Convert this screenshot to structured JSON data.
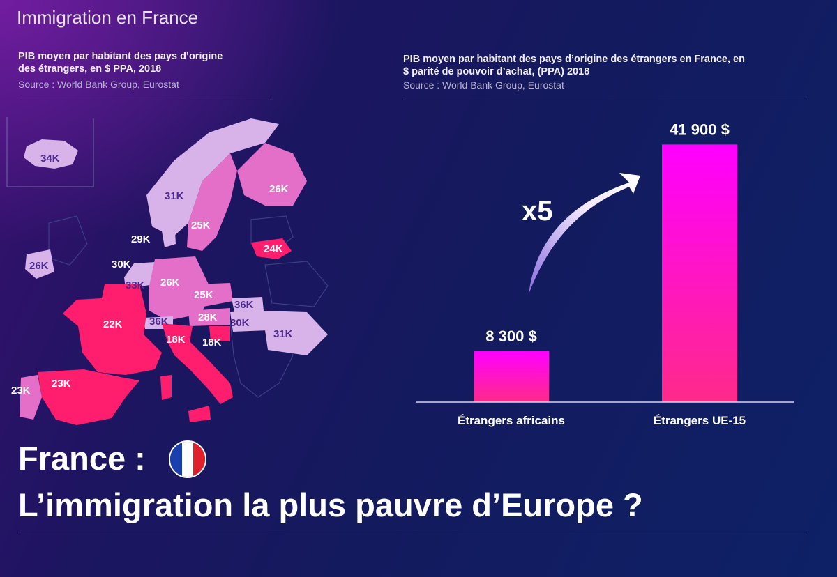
{
  "page": {
    "top_title": "Immigration en France",
    "headline_line1": "France :",
    "headline_line2": "L’immigration la plus pauvre d’Europe ?",
    "flag_colors": [
      "#1a3fae",
      "#ffffff",
      "#e0202a"
    ]
  },
  "map_panel": {
    "title_line1": "PIB moyen par habitant des pays d’origine",
    "title_line2": "des étrangers, en $ PPA, 2018",
    "source": "Source : World Bank Group, Eurostat",
    "colors": {
      "light": "#d7b3ea",
      "medium": "#e36fc8",
      "hot": "#ff1e6e"
    },
    "countries": [
      {
        "name": "iceland-label",
        "label": "34K"
      },
      {
        "name": "norway-label",
        "label": "31K"
      },
      {
        "name": "finland-label",
        "label": "26K"
      },
      {
        "name": "sweden-label",
        "label": "25K"
      },
      {
        "name": "denmark-label",
        "label": "29K"
      },
      {
        "name": "lithuania-label",
        "label": "24K"
      },
      {
        "name": "ireland-label",
        "label": "26K"
      },
      {
        "name": "netherlands-label",
        "label": "30K"
      },
      {
        "name": "belgium-label",
        "label": "33K"
      },
      {
        "name": "germany-label",
        "label": "26K"
      },
      {
        "name": "czechia-label",
        "label": "25K"
      },
      {
        "name": "slovakia-label",
        "label": "36K"
      },
      {
        "name": "austria-label",
        "label": "28K"
      },
      {
        "name": "hungary-label",
        "label": "30K"
      },
      {
        "name": "romania-label",
        "label": "31K"
      },
      {
        "name": "france-label",
        "label": "22K"
      },
      {
        "name": "switzerland-label",
        "label": "36K"
      },
      {
        "name": "italy-label",
        "label": "18K"
      },
      {
        "name": "slovenia-label",
        "label": "18K"
      },
      {
        "name": "spain-label",
        "label": "23K"
      },
      {
        "name": "portugal-label",
        "label": "23K"
      }
    ]
  },
  "bar_panel": {
    "title_line1": "PIB moyen par habitant des pays d’origine des étrangers en France, en",
    "title_line2": "$ parité de pouvoir d’achat, (PPA) 2018",
    "source": "Source : World Bank Group, Eurostat",
    "multiplier_label": "x5"
  },
  "chart_data": {
    "type": "bar",
    "title": "PIB moyen par habitant des pays d’origine des étrangers en France, en $ parité de pouvoir d’achat, (PPA) 2018",
    "categories": [
      "Étrangers africains",
      "Étrangers UE-15"
    ],
    "values": [
      8300,
      41900
    ],
    "value_labels": [
      "8 300 $",
      "41 900 $"
    ],
    "ylim": [
      0,
      45000
    ],
    "grid": false,
    "annotation": "x5",
    "colors": {
      "top": "#ff00ff",
      "bottom": "#ff2a8a"
    }
  }
}
